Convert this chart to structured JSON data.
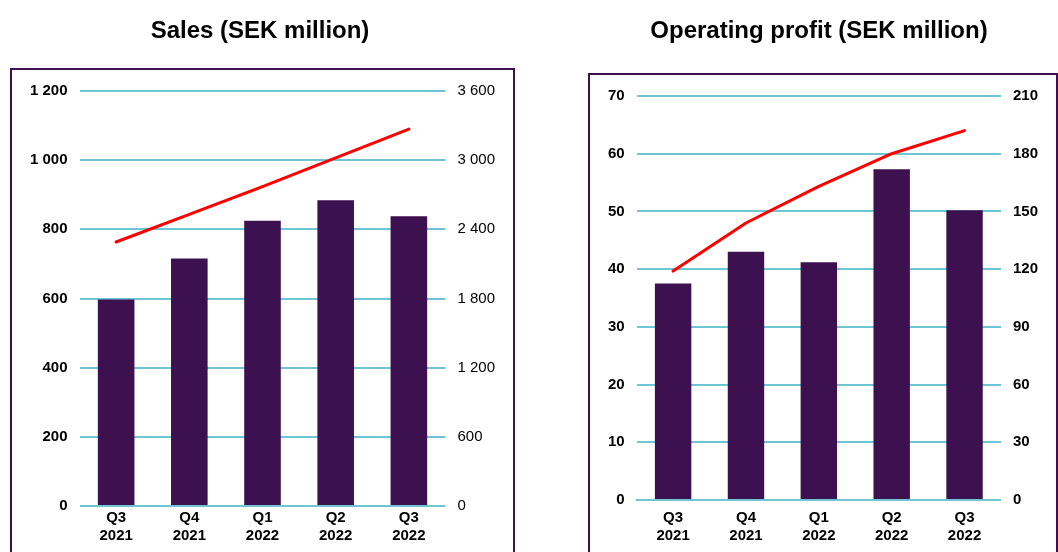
{
  "chart_data": [
    {
      "type": "bar",
      "title": "Sales (SEK million)",
      "categories": [
        "Q3 2021",
        "Q4 2021",
        "Q1 2022",
        "Q2 2022",
        "Q3 2022"
      ],
      "series": [
        {
          "color": "#3d1150",
          "values": [
            597,
            716,
            825,
            884,
            838
          ]
        },
        {
          "type": "line",
          "axis": "y2",
          "color": "#ff0000",
          "values": [
            2290,
            2530,
            2770,
            3020,
            3270
          ]
        }
      ],
      "ylim": [
        0,
        1200
      ],
      "yticks": [
        0,
        200,
        400,
        600,
        800,
        {
          "value": 1000,
          "label": "1 000"
        },
        {
          "value": 1200,
          "label": "1 200"
        }
      ],
      "y2lim": [
        0,
        3600
      ],
      "y2ticks": [
        0,
        600,
        {
          "value": 1200,
          "label": "1 200"
        },
        {
          "value": 1800,
          "label": "1 800"
        },
        {
          "value": 2400,
          "label": "2 400"
        },
        {
          "value": 3000,
          "label": "3 000"
        },
        {
          "value": 3600,
          "label": "3 600"
        }
      ],
      "grid": "y",
      "legend": false,
      "marker": "none"
    },
    {
      "type": "bar",
      "title": "Operating profit (SEK million)",
      "categories": [
        "Q3 2021",
        "Q4 2021",
        "Q1 2022",
        "Q2 2022",
        "Q3 2022"
      ],
      "series": [
        {
          "color": "#3d1150",
          "values": [
            37.5,
            43.0,
            41.2,
            57.3,
            50.2
          ]
        },
        {
          "type": "line",
          "axis": "y2",
          "color": "#ff0000",
          "values": [
            119,
            144,
            163,
            180,
            192
          ]
        }
      ],
      "ylim": [
        0,
        70
      ],
      "yticks": [
        0,
        10,
        20,
        30,
        40,
        50,
        60,
        70
      ],
      "y2lim": [
        0,
        210
      ],
      "y2ticks": [
        0,
        30,
        60,
        90,
        120,
        150,
        180,
        210
      ],
      "grid": "y",
      "legend": false,
      "marker": "none"
    }
  ]
}
